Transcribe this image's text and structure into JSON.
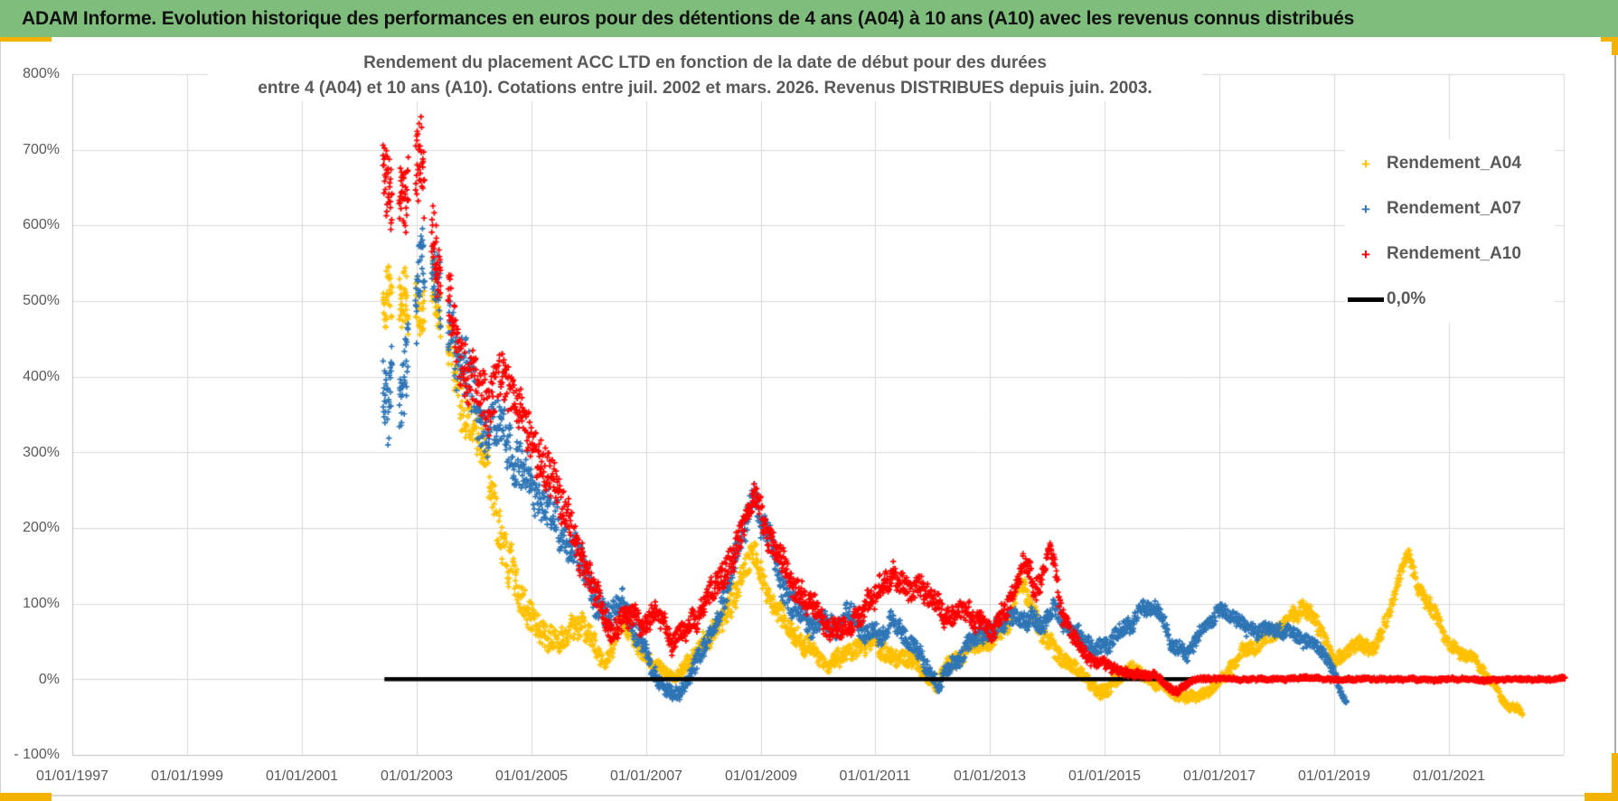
{
  "header": {
    "title": "ADAM Informe. Evolution historique des performances en euros pour des détentions de 4 ans (A04) à 10 ans (A10) avec les revenus connus distribués",
    "bg_color": "#7EBD7B"
  },
  "frame": {
    "accent_gold": "#F3B200",
    "edge_gray": "#ACACAC",
    "rule_gray": "#D9D9D9"
  },
  "chart_data": {
    "type": "scatter",
    "title_line1": "Rendement du placement ACC LTD en fonction de la date de début pour des durées",
    "title_line2": "entre 4 (A04) et 10 ans (A10). Cotations entre juil. 2002 et mars. 2026. Revenus DISTRIBUES depuis juin. 2003.",
    "title_color": "#595959",
    "grid": true,
    "grid_color": "#D9D9D9",
    "axis_border_color": "#BFBFBF",
    "x_axis": {
      "range": [
        1997,
        2023.0
      ],
      "tick_step_years": 2,
      "labels": [
        "01/01/1997",
        "01/01/1999",
        "01/01/2001",
        "01/01/2003",
        "01/01/2005",
        "01/01/2007",
        "01/01/2009",
        "01/01/2011",
        "01/01/2013",
        "01/01/2015",
        "01/01/2017",
        "01/01/2019",
        "01/01/2021"
      ]
    },
    "y_axis": {
      "range": [
        -100,
        800
      ],
      "tick_step": 100,
      "unit": "%",
      "labels": [
        "800%",
        "700%",
        "600%",
        "500%",
        "400%",
        "300%",
        "200%",
        "100%",
        "0%",
        "- 100%"
      ]
    },
    "legend": [
      {
        "label": "Rendement_A04",
        "color": "#FFC000",
        "marker": "plus"
      },
      {
        "label": "Rendement_A07",
        "color": "#2E75B6",
        "marker": "plus"
      },
      {
        "label": "Rendement_A10",
        "color": "#FF0000",
        "marker": "plus"
      },
      {
        "label": "0,0%",
        "color": "#000000",
        "marker": "line"
      }
    ],
    "zero_line": {
      "value": 0,
      "color": "#000000",
      "x_start": 2002.44,
      "x_end": 2023.03
    },
    "red_zero_overlay": {
      "value": 0,
      "color": "#FF0000",
      "x_start": 2016.5,
      "x_end": 2023.03
    },
    "series": [
      {
        "name": "Rendement_A04",
        "color": "#FFC000",
        "marker": "plus",
        "band_anchors": [
          [
            2002.42,
            500,
            55
          ],
          [
            2002.6,
            510,
            60
          ],
          [
            2002.8,
            490,
            65
          ],
          [
            2003.05,
            470,
            55
          ],
          [
            2003.25,
            520,
            50
          ],
          [
            2003.45,
            480,
            55
          ],
          [
            2003.65,
            420,
            50
          ],
          [
            2003.9,
            360,
            45
          ],
          [
            2004.1,
            320,
            45
          ],
          [
            2004.35,
            240,
            45
          ],
          [
            2004.6,
            150,
            45
          ],
          [
            2004.85,
            95,
            35
          ],
          [
            2005.1,
            70,
            28
          ],
          [
            2005.4,
            55,
            22
          ],
          [
            2005.7,
            65,
            25
          ],
          [
            2006,
            55,
            22
          ],
          [
            2006.3,
            25,
            15
          ],
          [
            2006.55,
            65,
            22
          ],
          [
            2006.8,
            40,
            18
          ],
          [
            2007.05,
            15,
            14
          ],
          [
            2007.3,
            5,
            12
          ],
          [
            2007.5,
            -5,
            10
          ],
          [
            2007.75,
            20,
            15
          ],
          [
            2008,
            45,
            18
          ],
          [
            2008.3,
            70,
            22
          ],
          [
            2008.6,
            115,
            28
          ],
          [
            2008.85,
            155,
            22
          ],
          [
            2009.05,
            125,
            25
          ],
          [
            2009.3,
            85,
            22
          ],
          [
            2009.6,
            55,
            20
          ],
          [
            2009.9,
            35,
            18
          ],
          [
            2010.15,
            8,
            12
          ],
          [
            2010.45,
            30,
            16
          ],
          [
            2010.75,
            45,
            18
          ],
          [
            2011.1,
            35,
            16
          ],
          [
            2011.45,
            30,
            15
          ],
          [
            2011.75,
            20,
            14
          ],
          [
            2012.05,
            -8,
            12
          ],
          [
            2012.35,
            25,
            14
          ],
          [
            2012.7,
            45,
            16
          ],
          [
            2013,
            40,
            16
          ],
          [
            2013.3,
            75,
            20
          ],
          [
            2013.55,
            135,
            20
          ],
          [
            2013.75,
            90,
            22
          ],
          [
            2014,
            45,
            18
          ],
          [
            2014.3,
            15,
            14
          ],
          [
            2014.6,
            5,
            12
          ],
          [
            2014.9,
            -15,
            12
          ],
          [
            2015.15,
            0,
            12
          ],
          [
            2015.45,
            15,
            12
          ],
          [
            2015.75,
            5,
            10
          ],
          [
            2016.05,
            -15,
            10
          ],
          [
            2016.3,
            -28,
            9
          ],
          [
            2016.6,
            -22,
            9
          ],
          [
            2016.9,
            -5,
            10
          ],
          [
            2017.2,
            15,
            12
          ],
          [
            2017.55,
            40,
            14
          ],
          [
            2017.9,
            60,
            16
          ],
          [
            2018.2,
            80,
            16
          ],
          [
            2018.5,
            95,
            16
          ],
          [
            2018.75,
            65,
            16
          ],
          [
            2019,
            20,
            12
          ],
          [
            2019.2,
            35,
            12
          ],
          [
            2019.45,
            50,
            13
          ],
          [
            2019.7,
            40,
            12
          ],
          [
            2019.95,
            80,
            15
          ],
          [
            2020.15,
            140,
            15
          ],
          [
            2020.28,
            165,
            10
          ],
          [
            2020.45,
            125,
            18
          ],
          [
            2020.7,
            90,
            15
          ],
          [
            2020.95,
            55,
            12
          ],
          [
            2021.2,
            40,
            10
          ],
          [
            2021.45,
            25,
            9
          ],
          [
            2021.7,
            -5,
            9
          ],
          [
            2021.95,
            -30,
            8
          ],
          [
            2022.15,
            -38,
            7
          ],
          [
            2022.28,
            -42,
            6
          ]
        ]
      },
      {
        "name": "Rendement_A07",
        "color": "#2E75B6",
        "marker": "plus",
        "band_anchors": [
          [
            2002.42,
            390,
            70
          ],
          [
            2002.65,
            375,
            70
          ],
          [
            2002.9,
            420,
            70
          ],
          [
            2003.1,
            560,
            65
          ],
          [
            2003.3,
            530,
            60
          ],
          [
            2003.55,
            450,
            55
          ],
          [
            2003.8,
            400,
            55
          ],
          [
            2004.05,
            370,
            50
          ],
          [
            2004.3,
            350,
            48
          ],
          [
            2004.6,
            305,
            48
          ],
          [
            2004.9,
            265,
            42
          ],
          [
            2005.2,
            225,
            40
          ],
          [
            2005.5,
            195,
            35
          ],
          [
            2005.8,
            165,
            32
          ],
          [
            2006.05,
            130,
            28
          ],
          [
            2006.35,
            85,
            24
          ],
          [
            2006.6,
            95,
            24
          ],
          [
            2006.9,
            55,
            20
          ],
          [
            2007.15,
            15,
            16
          ],
          [
            2007.4,
            -10,
            13
          ],
          [
            2007.6,
            -18,
            12
          ],
          [
            2007.85,
            25,
            18
          ],
          [
            2008.1,
            65,
            22
          ],
          [
            2008.4,
            115,
            26
          ],
          [
            2008.65,
            180,
            30
          ],
          [
            2008.88,
            240,
            20
          ],
          [
            2009.05,
            195,
            28
          ],
          [
            2009.3,
            140,
            26
          ],
          [
            2009.6,
            105,
            24
          ],
          [
            2009.9,
            80,
            20
          ],
          [
            2010.2,
            62,
            18
          ],
          [
            2010.5,
            90,
            20
          ],
          [
            2010.8,
            70,
            18
          ],
          [
            2011.1,
            60,
            18
          ],
          [
            2011.35,
            78,
            18
          ],
          [
            2011.65,
            45,
            16
          ],
          [
            2011.95,
            10,
            14
          ],
          [
            2012.1,
            -12,
            10
          ],
          [
            2012.3,
            18,
            14
          ],
          [
            2012.6,
            45,
            16
          ],
          [
            2012.95,
            60,
            16
          ],
          [
            2013.25,
            75,
            16
          ],
          [
            2013.55,
            85,
            16
          ],
          [
            2013.85,
            80,
            18
          ],
          [
            2014.1,
            88,
            18
          ],
          [
            2014.4,
            62,
            16
          ],
          [
            2014.75,
            42,
            14
          ],
          [
            2015.05,
            38,
            14
          ],
          [
            2015.35,
            60,
            16
          ],
          [
            2015.65,
            92,
            16
          ],
          [
            2015.9,
            98,
            14
          ],
          [
            2016.15,
            45,
            14
          ],
          [
            2016.45,
            40,
            13
          ],
          [
            2016.7,
            65,
            14
          ],
          [
            2017,
            92,
            14
          ],
          [
            2017.3,
            75,
            13
          ],
          [
            2017.6,
            55,
            13
          ],
          [
            2017.9,
            62,
            13
          ],
          [
            2018.2,
            62,
            13
          ],
          [
            2018.5,
            48,
            12
          ],
          [
            2018.8,
            35,
            11
          ],
          [
            2019,
            5,
            10
          ],
          [
            2019.12,
            -20,
            8
          ],
          [
            2019.22,
            -30,
            6
          ]
        ]
      },
      {
        "name": "Rendement_A10",
        "color": "#FF0000",
        "marker": "plus",
        "band_anchors": [
          [
            2002.42,
            665,
            70
          ],
          [
            2002.62,
            655,
            70
          ],
          [
            2002.85,
            620,
            70
          ],
          [
            2003.08,
            655,
            75
          ],
          [
            2003.3,
            580,
            65
          ],
          [
            2003.5,
            500,
            60
          ],
          [
            2003.72,
            430,
            55
          ],
          [
            2003.95,
            380,
            50
          ],
          [
            2004.2,
            370,
            50
          ],
          [
            2004.5,
            410,
            50
          ],
          [
            2004.75,
            345,
            48
          ],
          [
            2005,
            295,
            45
          ],
          [
            2005.3,
            245,
            40
          ],
          [
            2005.6,
            215,
            36
          ],
          [
            2005.9,
            175,
            32
          ],
          [
            2006.15,
            110,
            28
          ],
          [
            2006.4,
            60,
            22
          ],
          [
            2006.65,
            85,
            24
          ],
          [
            2006.95,
            70,
            22
          ],
          [
            2007.2,
            95,
            22
          ],
          [
            2007.45,
            55,
            20
          ],
          [
            2007.7,
            70,
            20
          ],
          [
            2008,
            100,
            24
          ],
          [
            2008.3,
            135,
            26
          ],
          [
            2008.6,
            190,
            28
          ],
          [
            2008.88,
            245,
            18
          ],
          [
            2009.05,
            205,
            26
          ],
          [
            2009.3,
            160,
            26
          ],
          [
            2009.6,
            130,
            25
          ],
          [
            2009.9,
            105,
            22
          ],
          [
            2010.15,
            65,
            20
          ],
          [
            2010.45,
            65,
            20
          ],
          [
            2010.75,
            95,
            22
          ],
          [
            2011.05,
            120,
            22
          ],
          [
            2011.3,
            135,
            22
          ],
          [
            2011.6,
            110,
            22
          ],
          [
            2011.9,
            118,
            22
          ],
          [
            2012.2,
            85,
            20
          ],
          [
            2012.5,
            100,
            20
          ],
          [
            2012.8,
            82,
            18
          ],
          [
            2013.1,
            70,
            18
          ],
          [
            2013.35,
            105,
            20
          ],
          [
            2013.6,
            148,
            18
          ],
          [
            2013.8,
            120,
            20
          ],
          [
            2014.05,
            178,
            12
          ],
          [
            2014.25,
            85,
            18
          ],
          [
            2014.45,
            50,
            15
          ],
          [
            2014.7,
            32,
            12
          ],
          [
            2015,
            18,
            10
          ],
          [
            2015.3,
            8,
            8
          ],
          [
            2015.6,
            5,
            7
          ],
          [
            2015.9,
            2,
            6
          ],
          [
            2016.1,
            -8,
            8
          ],
          [
            2016.28,
            -20,
            7
          ],
          [
            2016.45,
            -6,
            6
          ],
          [
            2016.6,
            0,
            4
          ],
          [
            2017,
            0,
            3
          ],
          [
            2018,
            0,
            3
          ],
          [
            2019,
            0,
            3
          ],
          [
            2020,
            0,
            3
          ],
          [
            2021,
            0,
            3
          ],
          [
            2022,
            0,
            3
          ],
          [
            2023.03,
            0,
            3
          ]
        ]
      }
    ]
  }
}
